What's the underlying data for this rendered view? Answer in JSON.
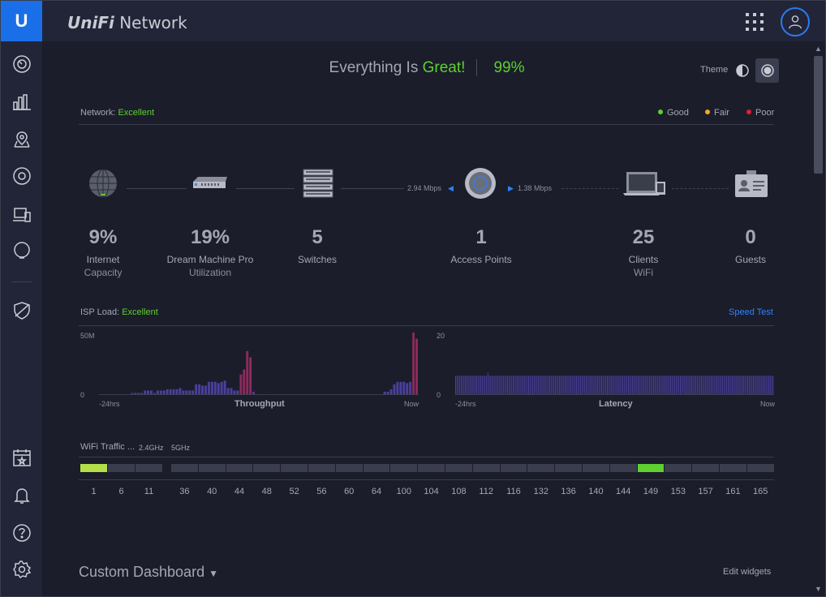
{
  "app": {
    "brand_bold": "UniFi",
    "brand_rest": " Network",
    "logo_letter": "U"
  },
  "sidebar": {
    "items": [
      {
        "name": "dashboard-icon"
      },
      {
        "name": "statistics-icon"
      },
      {
        "name": "map-icon"
      },
      {
        "name": "devices-icon"
      },
      {
        "name": "clients-icon"
      },
      {
        "name": "insights-icon"
      },
      {
        "name": "threat-management-icon"
      },
      {
        "name": "events-icon"
      },
      {
        "name": "alerts-icon"
      },
      {
        "name": "help-icon"
      },
      {
        "name": "settings-icon"
      }
    ]
  },
  "header": {
    "apps_icon": "grid-icon",
    "user_icon": "user-icon"
  },
  "status": {
    "prefix": "Everything Is ",
    "word": "Great!",
    "percent": "99%"
  },
  "theme": {
    "label": "Theme"
  },
  "network": {
    "label": "Network:",
    "value": "Excellent",
    "legend": [
      {
        "label": "Good",
        "color": "#5ed02f"
      },
      {
        "label": "Fair",
        "color": "#f5a623"
      },
      {
        "label": "Poor",
        "color": "#e0202e"
      }
    ],
    "stats": [
      {
        "num": "9%",
        "l1": "Internet",
        "l2": "Capacity"
      },
      {
        "num": "19%",
        "l1": "Dream Machine Pro",
        "l2": "Utilization"
      },
      {
        "num": "5",
        "l1": "Switches",
        "l2": ""
      },
      {
        "num": "1",
        "l1": "Access Points",
        "l2": ""
      },
      {
        "num": "25",
        "l1": "Clients",
        "l2": "WiFi"
      },
      {
        "num": "0",
        "l1": "Guests",
        "l2": ""
      }
    ],
    "rate_down": "2.94 Mbps",
    "rate_up": "1.38 Mbps"
  },
  "isp": {
    "label": "ISP Load:",
    "value": "Excellent",
    "speed_test": "Speed Test"
  },
  "charts": {
    "throughput": {
      "title": "Throughput",
      "ymax_label": "50M",
      "ymin_label": "0",
      "x_start": "-24hrs",
      "x_end": "Now"
    },
    "latency": {
      "title": "Latency",
      "ymax_label": "20",
      "ymin_label": "0",
      "x_start": "-24hrs",
      "x_end": "Now"
    }
  },
  "chart_data": [
    {
      "type": "bar",
      "title": "Throughput",
      "ylim": [
        0,
        50
      ],
      "values": [
        0,
        0,
        0,
        0,
        0,
        0,
        0,
        0,
        0,
        0,
        1,
        1,
        1,
        1,
        3,
        3,
        3,
        1,
        3,
        3,
        3,
        4,
        4,
        4,
        4,
        5,
        3,
        3,
        3,
        3,
        8,
        8,
        7,
        7,
        10,
        10,
        10,
        9,
        10,
        11,
        5,
        5,
        3,
        3,
        16,
        20,
        35,
        30,
        2,
        0,
        0,
        0,
        0,
        0,
        0,
        0,
        0,
        0,
        0,
        0,
        0,
        0,
        0,
        0,
        0,
        0,
        0,
        0,
        0,
        0,
        0,
        0,
        0,
        0,
        0,
        0,
        0,
        0,
        0,
        0,
        0,
        0,
        0,
        0,
        0,
        0,
        0,
        0,
        0,
        2,
        2,
        4,
        8,
        10,
        10,
        10,
        9,
        10,
        50,
        45
      ]
    },
    {
      "type": "bar",
      "title": "Latency",
      "ylim": [
        0,
        20
      ],
      "values": [
        6,
        6,
        6,
        6,
        6,
        6,
        6,
        6,
        6,
        6,
        6,
        6,
        6,
        6,
        6,
        6,
        6,
        6,
        6,
        6,
        6,
        6,
        6,
        7,
        6,
        6,
        6,
        6,
        6,
        6,
        6,
        6,
        6,
        6,
        6,
        6,
        6,
        6,
        6,
        6,
        6,
        6,
        6,
        6,
        6,
        6,
        6,
        6,
        6,
        6,
        6,
        6,
        6,
        6,
        6,
        6,
        6,
        6,
        6,
        6,
        6,
        6,
        6,
        6,
        6,
        6,
        6,
        6,
        6,
        6,
        6,
        6,
        6,
        6,
        6,
        6,
        6,
        6,
        6,
        6,
        6,
        6,
        6,
        6,
        6,
        6,
        6,
        6,
        6,
        6,
        6,
        6,
        6,
        6,
        6,
        6,
        6,
        6,
        6,
        6,
        6,
        6,
        6,
        6,
        6,
        6,
        6,
        6,
        6,
        6,
        6,
        6,
        6,
        6,
        6,
        6,
        6,
        6,
        6,
        6,
        6,
        6,
        6,
        6,
        6,
        6,
        6,
        6,
        6,
        6,
        6,
        6,
        6,
        6,
        6,
        6,
        6,
        6,
        6,
        6,
        6,
        6,
        6,
        6,
        6,
        6,
        6,
        6,
        6,
        6,
        6,
        6,
        6,
        6,
        6,
        6,
        6,
        6,
        6,
        6,
        6,
        6,
        6,
        6,
        6,
        6,
        6,
        6,
        6,
        6,
        6,
        6,
        6,
        6,
        6,
        6,
        6,
        6,
        6,
        6,
        6,
        6,
        6,
        6,
        6,
        6,
        6,
        6,
        6,
        6,
        6,
        6,
        6,
        6,
        6,
        6,
        6,
        6,
        6,
        6,
        6,
        6,
        6,
        6,
        6,
        6,
        6,
        6,
        6,
        6,
        6,
        6,
        6,
        6,
        6,
        6,
        6,
        6,
        6,
        6,
        6,
        6,
        6,
        6,
        6,
        6,
        6
      ]
    }
  ],
  "wifi": {
    "label": "WiFi Traffic ...",
    "band24": "2.4GHz",
    "band5": "5GHz",
    "ch24": [
      "1",
      "6",
      "11"
    ],
    "ch5": [
      "36",
      "40",
      "44",
      "48",
      "52",
      "56",
      "60",
      "64",
      "100",
      "104",
      "108",
      "112",
      "116",
      "132",
      "136",
      "140",
      "144",
      "149",
      "153",
      "157",
      "161",
      "165"
    ],
    "active24": "1",
    "active5": "149"
  },
  "custom": {
    "title": "Custom Dashboard",
    "edit": "Edit widgets"
  }
}
